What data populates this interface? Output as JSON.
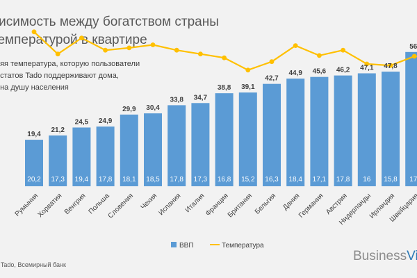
{
  "header": {
    "title_line1": "висимость между богатством страны",
    "title_line2": "температурой в квартире",
    "note_lines": [
      "няя температура, которую пользователи",
      "остатов Tado поддерживают дома,",
      "I на душу населения"
    ]
  },
  "footer": {
    "source": ": Tado, Всемирный банк",
    "brand_part1": "Business",
    "brand_part2": "Vi"
  },
  "chart_data": {
    "type": "bar",
    "categories": [
      "Румыния",
      "Хорватия",
      "Венгрия",
      "Польша",
      "Словения",
      "Чехия",
      "Испания",
      "Италия",
      "Франция",
      "Британия",
      "Бельгия",
      "Дания",
      "Германия",
      "Австрия",
      "Нидерланды",
      "Ирландия",
      "Швейцария"
    ],
    "series": [
      {
        "name": "ВВП",
        "type": "bar",
        "values": [
          "19,4",
          "21,2",
          "24,5",
          "24,9",
          "29,9",
          "30,4",
          "33,8",
          "34,7",
          "38,8",
          "39,1",
          "42,7",
          "44,9",
          "45,6",
          "46,2",
          "47,1",
          "47,8",
          "56,"
        ],
        "color": "#5b9bd5"
      },
      {
        "name": "Температура",
        "type": "line",
        "values": [
          "20,2",
          "17,3",
          "19,4",
          "17,8",
          "18,1",
          "18,5",
          "17,8",
          "17,3",
          "16,8",
          "15,2",
          "16,3",
          "18,4",
          "17,1",
          "17,8",
          "16",
          "15,8",
          "17,"
        ],
        "color": "#ffc000"
      }
    ]
  }
}
